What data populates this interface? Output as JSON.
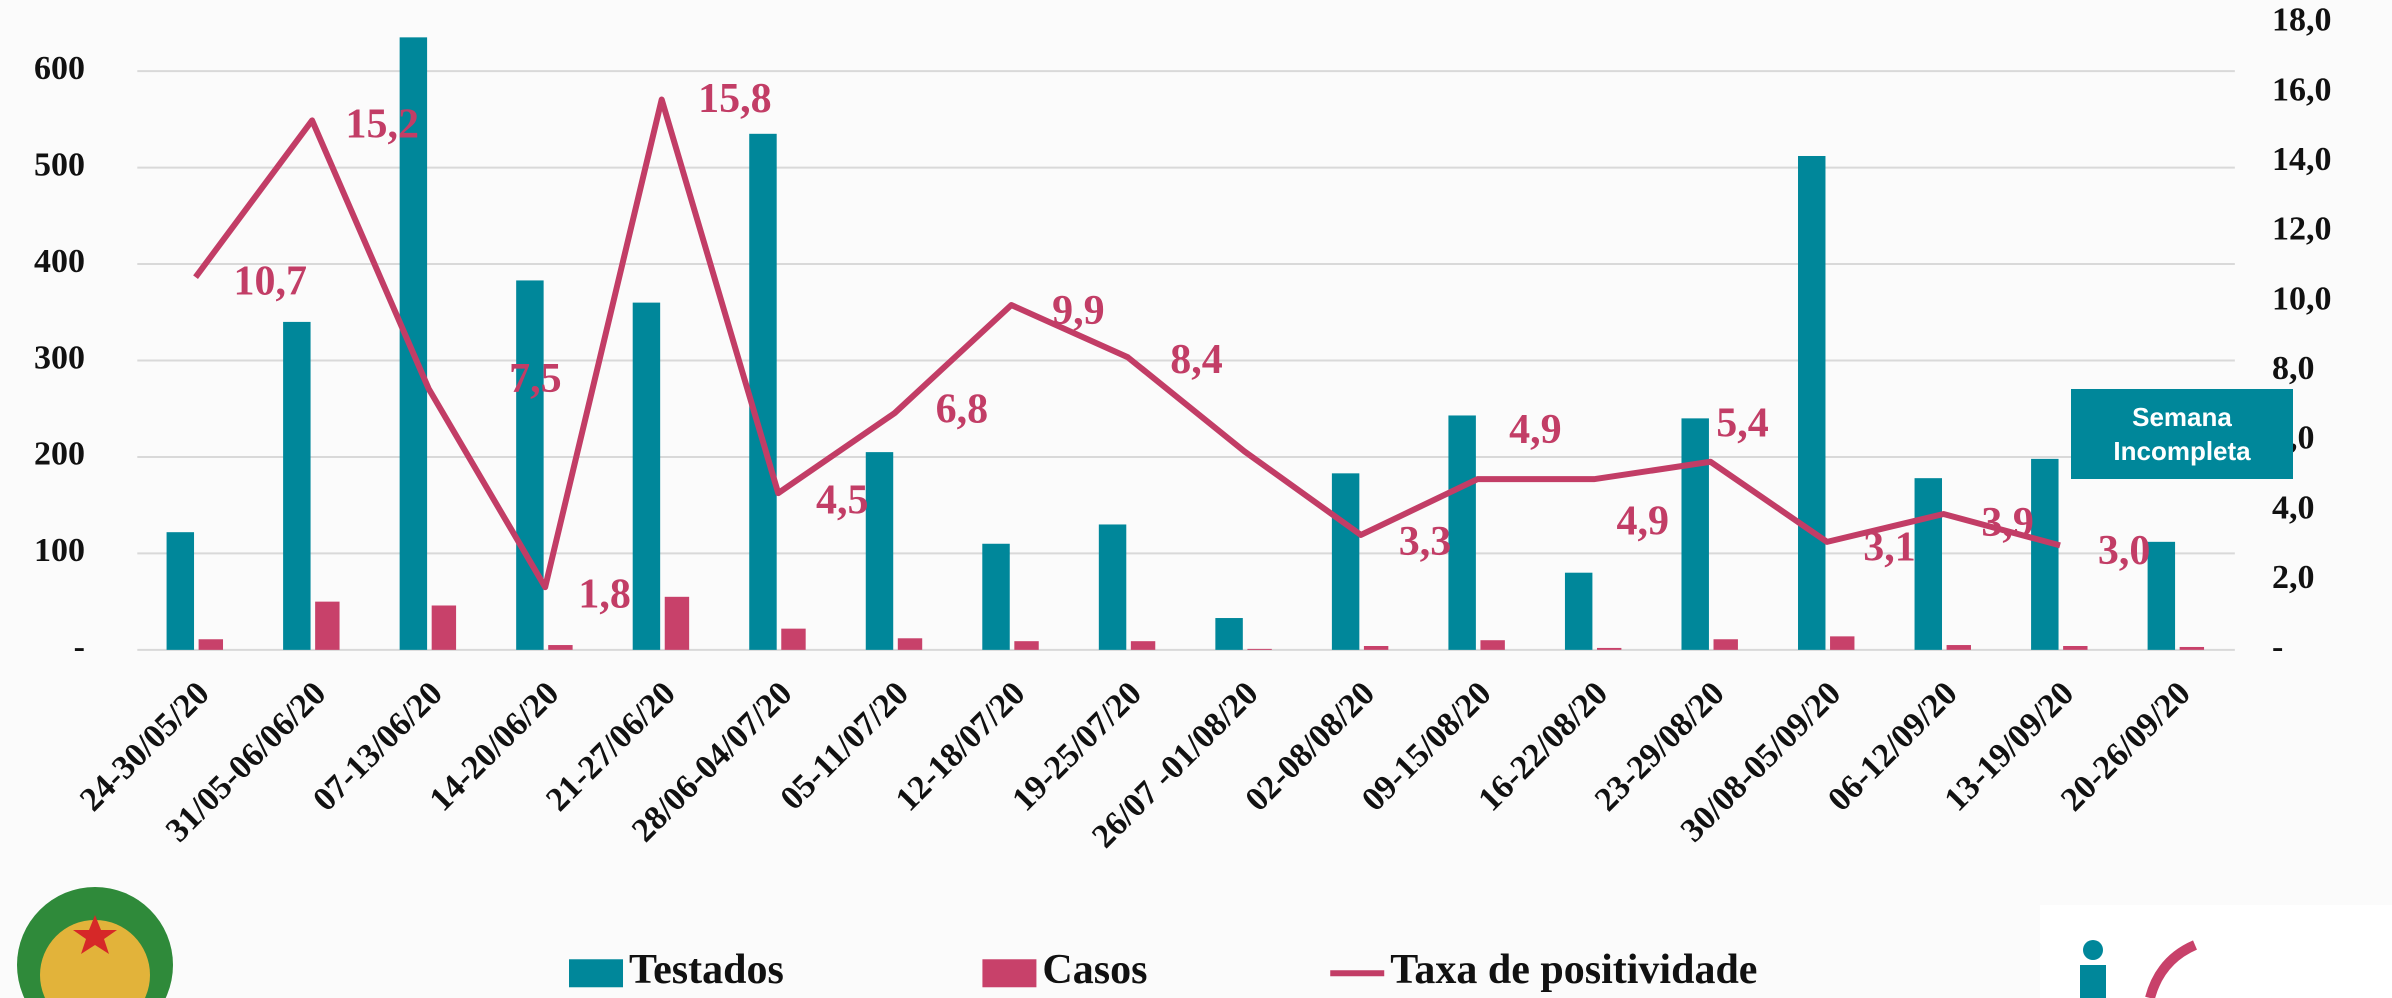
{
  "chart_data": {
    "type": "bar-line",
    "categories": [
      "24-30/05/20",
      "31/05-06/06/20",
      "07-13/06/20",
      "14-20/06/20",
      "21-27/06/20",
      "28/06-04/07/20",
      "05-11/07/20",
      "12-18/07/20",
      "19-25/07/20",
      "26/07 -01/08/20",
      "02-08/08/20",
      "09-15/08/20",
      "16-22/08/20",
      "23-29/08/20",
      "30/08-05/09/20",
      "06-12/09/20",
      "13-19/09/20",
      "20-26/09/20"
    ],
    "series": [
      {
        "name": "Testados",
        "type": "bar",
        "color": "#00879a",
        "values": [
          122,
          340,
          635,
          383,
          360,
          535,
          205,
          110,
          130,
          33,
          183,
          243,
          80,
          240,
          512,
          178,
          198,
          112
        ]
      },
      {
        "name": "Casos",
        "type": "bar",
        "color": "#c8416a",
        "values": [
          11,
          50,
          46,
          5,
          55,
          22,
          12,
          9,
          9,
          1,
          4,
          10,
          2,
          11,
          14,
          5,
          4,
          3
        ]
      },
      {
        "name": "Taxa de positividade",
        "type": "line",
        "axis": "y2",
        "color": "#c23d66",
        "values": [
          10.7,
          15.2,
          7.5,
          1.8,
          15.8,
          4.5,
          6.8,
          9.9,
          8.4,
          5.7,
          3.3,
          4.9,
          4.9,
          5.4,
          3.1,
          3.9,
          3.0,
          null
        ],
        "value_labels": [
          "10,7",
          "15,2",
          "7,5",
          "1,8",
          "15,8",
          "4,5",
          "6,8",
          "9,9",
          "8,4",
          null,
          "3,3",
          "4,9",
          "4,9",
          "5,4",
          "3,1",
          "3,9",
          "3,0",
          null
        ]
      }
    ],
    "ylim": [
      0,
      650
    ],
    "yticks": [
      {
        "value": 0,
        "label": "-"
      },
      100,
      200,
      300,
      400,
      500,
      600
    ],
    "y2lim": [
      0,
      18
    ],
    "y2ticks": [
      {
        "value": 0,
        "label": "-"
      },
      {
        "value": 2,
        "label": "2,0"
      },
      {
        "value": 4,
        "label": "4,0"
      },
      {
        "value": 6,
        "label": "6,0"
      },
      {
        "value": 8,
        "label": "8,0"
      },
      {
        "value": 10,
        "label": "10,0"
      },
      {
        "value": 12,
        "label": "12,0"
      },
      {
        "value": 14,
        "label": "14,0"
      },
      {
        "value": 16,
        "label": "16,0"
      },
      {
        "value": 18,
        "label": "18,0"
      }
    ],
    "grid": true,
    "annotation": "Semana Incompleta",
    "legend": "bottom"
  }
}
